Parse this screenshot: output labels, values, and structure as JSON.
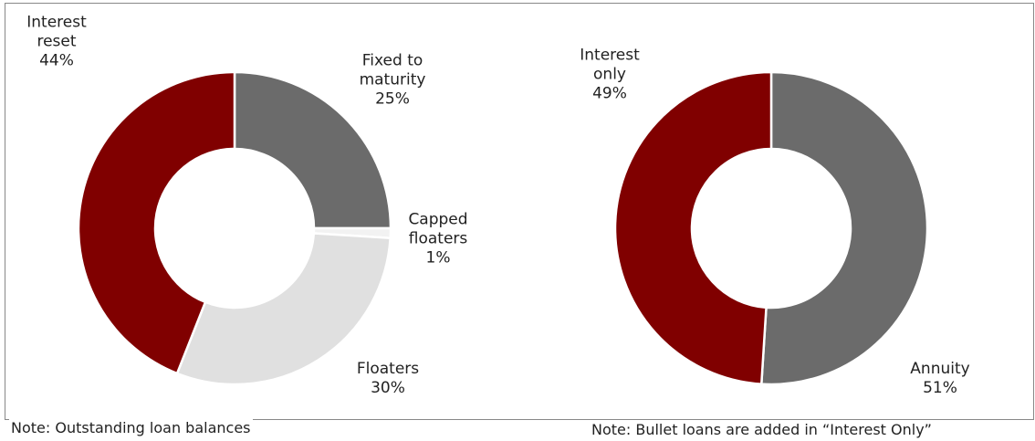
{
  "chart_data": [
    {
      "type": "pie",
      "donut": true,
      "categories": [
        "Fixed to maturity",
        "Capped floaters",
        "Floaters",
        "Interest reset"
      ],
      "values": [
        25,
        1,
        30,
        44
      ],
      "value_labels": [
        "25%",
        "1%",
        "30%",
        "44%"
      ],
      "colors": [
        "#6b6b6b",
        "#f2f2f2",
        "#e0e0e0",
        "#800000"
      ],
      "note": "Note: Outstanding loan balances"
    },
    {
      "type": "pie",
      "donut": true,
      "categories": [
        "Annuity",
        "Interest only"
      ],
      "values": [
        51,
        49
      ],
      "value_labels": [
        "51%",
        "49%"
      ],
      "colors": [
        "#6b6b6b",
        "#800000"
      ],
      "note": "Note: Bullet loans are added in “Interest Only”"
    }
  ]
}
